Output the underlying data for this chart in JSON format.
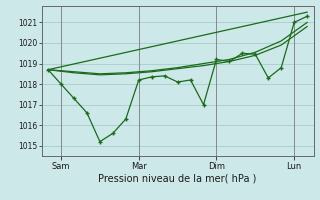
{
  "background_color": "#cde8e8",
  "grid_color": "#aacccc",
  "line_color": "#1a6b1a",
  "xlabel": "Pression niveau de la mer( hPa )",
  "ylim": [
    1014.5,
    1021.8
  ],
  "yticks": [
    1015,
    1016,
    1017,
    1018,
    1019,
    1020,
    1021
  ],
  "xlim": [
    -0.5,
    20.5
  ],
  "x_sam": 1,
  "x_mar": 7,
  "x_dim": 13,
  "x_lun": 19,
  "line1_x": [
    0,
    1,
    2,
    3,
    4,
    5,
    6,
    7,
    8,
    9,
    10,
    11,
    12,
    13,
    14,
    15,
    16,
    17,
    18,
    19,
    20
  ],
  "line1_y": [
    1018.7,
    1018.0,
    1017.3,
    1016.6,
    1015.2,
    1015.6,
    1016.3,
    1018.2,
    1018.35,
    1018.4,
    1018.1,
    1018.2,
    1017.0,
    1019.2,
    1019.1,
    1019.5,
    1019.45,
    1018.3,
    1018.8,
    1021.0,
    1021.3
  ],
  "line2_x": [
    0,
    2,
    4,
    6,
    8,
    10,
    12,
    14,
    16,
    18,
    20
  ],
  "line2_y": [
    1018.7,
    1018.55,
    1018.45,
    1018.5,
    1018.6,
    1018.75,
    1018.9,
    1019.1,
    1019.4,
    1019.9,
    1020.8
  ],
  "line3_x": [
    0,
    2,
    4,
    6,
    8,
    10,
    12,
    14,
    16,
    18,
    20
  ],
  "line3_y": [
    1018.7,
    1018.6,
    1018.5,
    1018.55,
    1018.65,
    1018.8,
    1019.0,
    1019.2,
    1019.55,
    1020.1,
    1021.0
  ],
  "line4_x": [
    0,
    20
  ],
  "line4_y": [
    1018.7,
    1021.5
  ]
}
